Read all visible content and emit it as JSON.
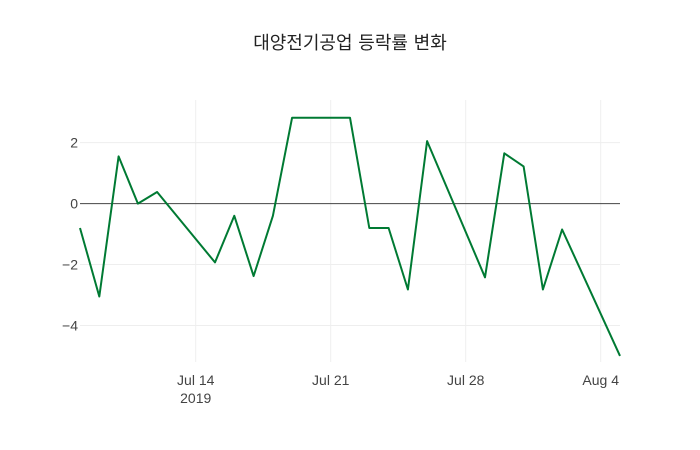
{
  "chart_data": {
    "type": "line",
    "title": "대양전기공업 등락률 변화",
    "xlabel": "",
    "ylabel": "",
    "x_type": "date",
    "xlim": [
      "2019-07-08",
      "2019-08-05"
    ],
    "ylim": [
      -5.2,
      3.4
    ],
    "x_ticks": [
      {
        "value": "2019-07-14",
        "label": "Jul 14",
        "sublabel": "2019"
      },
      {
        "value": "2019-07-21",
        "label": "Jul 21",
        "sublabel": ""
      },
      {
        "value": "2019-07-28",
        "label": "Jul 28",
        "sublabel": ""
      },
      {
        "value": "2019-08-04",
        "label": "Aug 4",
        "sublabel": ""
      }
    ],
    "y_ticks": [
      {
        "value": 2,
        "label": "2"
      },
      {
        "value": 0,
        "label": "0"
      },
      {
        "value": -2,
        "label": "−2"
      },
      {
        "value": -4,
        "label": "−4"
      }
    ],
    "grid": true,
    "zero_line": true,
    "legend": "none",
    "series": [
      {
        "color": "#007a33",
        "x": [
          "2019-07-08",
          "2019-07-09",
          "2019-07-10",
          "2019-07-11",
          "2019-07-12",
          "2019-07-15",
          "2019-07-16",
          "2019-07-17",
          "2019-07-18",
          "2019-07-19",
          "2019-07-22",
          "2019-07-23",
          "2019-07-24",
          "2019-07-25",
          "2019-07-26",
          "2019-07-29",
          "2019-07-30",
          "2019-07-31",
          "2019-08-01",
          "2019-08-02",
          "2019-08-05"
        ],
        "y": [
          -0.8,
          -3.05,
          1.55,
          0.0,
          0.38,
          -1.93,
          -0.4,
          -2.38,
          -0.4,
          2.82,
          2.82,
          -0.8,
          -0.8,
          -2.82,
          2.05,
          -2.42,
          1.65,
          1.22,
          -2.82,
          -0.85,
          -5.0
        ]
      }
    ]
  }
}
